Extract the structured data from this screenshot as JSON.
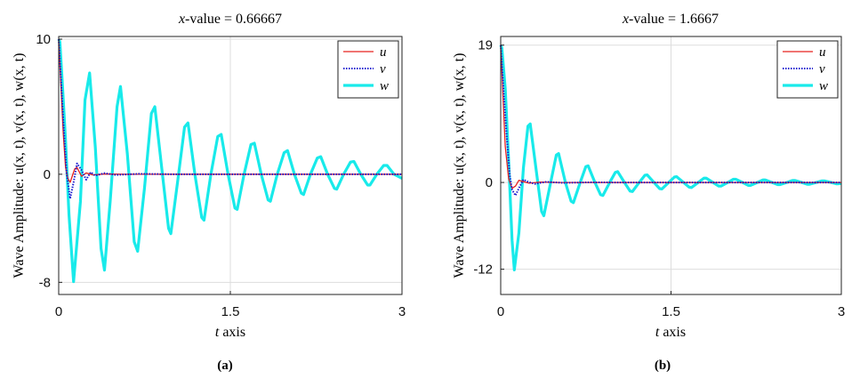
{
  "figure": {
    "panel_labels": [
      "(a)",
      "(b)"
    ]
  },
  "chart_data": [
    {
      "type": "line",
      "title": "x-value = 0.66667",
      "title_var": "x",
      "title_rest": "-value = 0.66667",
      "xlabel": "t axis",
      "xlabel_var": "t",
      "xlabel_rest": " axis",
      "ylabel": "Wave Amplitude:  u(x, t), v(x, t), w(x, t)",
      "xlim": [
        0,
        3
      ],
      "ylim": [
        -8.9,
        10.2
      ],
      "xticks": [
        0,
        1.5,
        3
      ],
      "xtick_labels": [
        "0",
        "1.5",
        "3"
      ],
      "yticks": [
        -8,
        0,
        10
      ],
      "ytick_labels": [
        "-8",
        "0",
        "10"
      ],
      "grid": true,
      "legend_position": "top-right",
      "colors": {
        "u": "#e8211e",
        "v": "#1a1acf",
        "w": "#18eaea"
      },
      "series": [
        {
          "name": "u",
          "style": "solid",
          "points": [
            [
              0,
              10
            ],
            [
              0.02,
              6.5
            ],
            [
              0.04,
              3
            ],
            [
              0.06,
              0.5
            ],
            [
              0.08,
              -0.3
            ],
            [
              0.1,
              -0.6
            ],
            [
              0.12,
              -0.1
            ],
            [
              0.14,
              0.4
            ],
            [
              0.16,
              0.5
            ],
            [
              0.2,
              -0.15
            ],
            [
              0.24,
              0.1
            ],
            [
              0.3,
              -0.05
            ],
            [
              0.4,
              0.02
            ],
            [
              0.6,
              0
            ],
            [
              1.0,
              0
            ],
            [
              3,
              0
            ]
          ]
        },
        {
          "name": "v",
          "style": "dotted",
          "points": [
            [
              0,
              10
            ],
            [
              0.02,
              7
            ],
            [
              0.04,
              4
            ],
            [
              0.07,
              0
            ],
            [
              0.1,
              -1.8
            ],
            [
              0.13,
              -0.6
            ],
            [
              0.16,
              0.8
            ],
            [
              0.2,
              0.3
            ],
            [
              0.24,
              -0.4
            ],
            [
              0.28,
              0.15
            ],
            [
              0.32,
              -0.1
            ],
            [
              0.4,
              0.08
            ],
            [
              0.5,
              -0.05
            ],
            [
              0.7,
              0.03
            ],
            [
              1.0,
              0
            ],
            [
              3,
              0
            ]
          ]
        },
        {
          "name": "w",
          "style": "solid-thick",
          "points": [
            [
              0,
              10
            ],
            [
              0.01,
              9.8
            ],
            [
              0.03,
              7
            ],
            [
              0.06,
              2.5
            ],
            [
              0.09,
              -3
            ],
            [
              0.13,
              -7.95
            ],
            [
              0.19,
              -2
            ],
            [
              0.23,
              5.5
            ],
            [
              0.27,
              7.5
            ],
            [
              0.32,
              2
            ],
            [
              0.37,
              -5.5
            ],
            [
              0.4,
              -7.1
            ],
            [
              0.45,
              -2
            ],
            [
              0.51,
              5
            ],
            [
              0.54,
              6.5
            ],
            [
              0.6,
              1.5
            ],
            [
              0.66,
              -5
            ],
            [
              0.69,
              -5.7
            ],
            [
              0.75,
              -1
            ],
            [
              0.81,
              4.5
            ],
            [
              0.84,
              5
            ],
            [
              0.9,
              0.5
            ],
            [
              0.96,
              -4
            ],
            [
              0.98,
              -4.4
            ],
            [
              1.04,
              -0.5
            ],
            [
              1.1,
              3.5
            ],
            [
              1.13,
              3.8
            ],
            [
              1.19,
              0
            ],
            [
              1.25,
              -3.2
            ],
            [
              1.27,
              -3.4
            ],
            [
              1.33,
              0
            ],
            [
              1.39,
              2.8
            ],
            [
              1.42,
              2.95
            ],
            [
              1.48,
              0
            ],
            [
              1.54,
              -2.5
            ],
            [
              1.56,
              -2.6
            ],
            [
              1.62,
              0
            ],
            [
              1.68,
              2.2
            ],
            [
              1.71,
              2.3
            ],
            [
              1.77,
              0
            ],
            [
              1.83,
              -1.9
            ],
            [
              1.85,
              -2
            ],
            [
              1.91,
              0
            ],
            [
              1.97,
              1.6
            ],
            [
              2.0,
              1.75
            ],
            [
              2.06,
              0
            ],
            [
              2.12,
              -1.4
            ],
            [
              2.14,
              -1.5
            ],
            [
              2.2,
              0
            ],
            [
              2.26,
              1.2
            ],
            [
              2.29,
              1.3
            ],
            [
              2.35,
              0
            ],
            [
              2.41,
              -1.05
            ],
            [
              2.43,
              -1.1
            ],
            [
              2.49,
              0
            ],
            [
              2.55,
              0.9
            ],
            [
              2.58,
              0.95
            ],
            [
              2.64,
              0
            ],
            [
              2.7,
              -0.8
            ],
            [
              2.72,
              -0.8
            ],
            [
              2.78,
              0
            ],
            [
              2.84,
              0.65
            ],
            [
              2.87,
              0.65
            ],
            [
              2.93,
              0
            ],
            [
              3,
              -0.3
            ]
          ]
        }
      ]
    },
    {
      "type": "line",
      "title": "x-value = 1.6667",
      "title_var": "x",
      "title_rest": "-value = 1.6667",
      "xlabel": "t axis",
      "xlabel_var": "t",
      "xlabel_rest": " axis",
      "ylabel": "Wave Amplitude:  u(x, t), v(x, t), w(x, t)",
      "xlim": [
        0,
        3
      ],
      "ylim": [
        -15.5,
        20.2
      ],
      "xticks": [
        0,
        1.5,
        3
      ],
      "xtick_labels": [
        "0",
        "1.5",
        "3"
      ],
      "yticks": [
        -12,
        0,
        19
      ],
      "ytick_labels": [
        "-12",
        "0",
        "19"
      ],
      "grid": true,
      "legend_position": "top-right",
      "colors": {
        "u": "#e8211e",
        "v": "#1a1acf",
        "w": "#18eaea"
      },
      "series": [
        {
          "name": "u",
          "style": "solid",
          "points": [
            [
              0,
              19
            ],
            [
              0.02,
              12
            ],
            [
              0.04,
              5
            ],
            [
              0.07,
              0.5
            ],
            [
              0.1,
              -0.8
            ],
            [
              0.13,
              -0.5
            ],
            [
              0.16,
              0.3
            ],
            [
              0.2,
              0.1
            ],
            [
              0.25,
              -0.1
            ],
            [
              0.35,
              0.05
            ],
            [
              0.5,
              0
            ],
            [
              1.0,
              0
            ],
            [
              3,
              0
            ]
          ]
        },
        {
          "name": "v",
          "style": "dotted",
          "points": [
            [
              0,
              19
            ],
            [
              0.02,
              14
            ],
            [
              0.05,
              7
            ],
            [
              0.08,
              1
            ],
            [
              0.1,
              -1
            ],
            [
              0.13,
              -1.8
            ],
            [
              0.16,
              -0.8
            ],
            [
              0.2,
              0.4
            ],
            [
              0.24,
              0.1
            ],
            [
              0.3,
              -0.2
            ],
            [
              0.4,
              0.08
            ],
            [
              0.55,
              -0.05
            ],
            [
              0.8,
              0.02
            ],
            [
              1.0,
              0
            ],
            [
              3,
              0
            ]
          ]
        },
        {
          "name": "w",
          "style": "solid-thick",
          "points": [
            [
              0,
              19
            ],
            [
              0.01,
              18.6
            ],
            [
              0.04,
              13
            ],
            [
              0.07,
              3
            ],
            [
              0.1,
              -8
            ],
            [
              0.12,
              -12.1
            ],
            [
              0.16,
              -7
            ],
            [
              0.2,
              2
            ],
            [
              0.24,
              7.8
            ],
            [
              0.26,
              8.1
            ],
            [
              0.31,
              2
            ],
            [
              0.36,
              -4
            ],
            [
              0.38,
              -4.6
            ],
            [
              0.44,
              0
            ],
            [
              0.49,
              3.8
            ],
            [
              0.51,
              4
            ],
            [
              0.57,
              0
            ],
            [
              0.62,
              -2.6
            ],
            [
              0.64,
              -2.8
            ],
            [
              0.7,
              0
            ],
            [
              0.75,
              2.2
            ],
            [
              0.77,
              2.3
            ],
            [
              0.83,
              0
            ],
            [
              0.88,
              -1.7
            ],
            [
              0.9,
              -1.8
            ],
            [
              0.96,
              0
            ],
            [
              1.01,
              1.4
            ],
            [
              1.03,
              1.5
            ],
            [
              1.09,
              0
            ],
            [
              1.14,
              -1.2
            ],
            [
              1.16,
              -1.25
            ],
            [
              1.22,
              0
            ],
            [
              1.27,
              1.0
            ],
            [
              1.29,
              1.05
            ],
            [
              1.35,
              0
            ],
            [
              1.4,
              -0.85
            ],
            [
              1.42,
              -0.9
            ],
            [
              1.48,
              0
            ],
            [
              1.53,
              0.75
            ],
            [
              1.55,
              0.8
            ],
            [
              1.61,
              0
            ],
            [
              1.66,
              -0.65
            ],
            [
              1.68,
              -0.7
            ],
            [
              1.74,
              0
            ],
            [
              1.79,
              0.6
            ],
            [
              1.81,
              0.6
            ],
            [
              1.87,
              0
            ],
            [
              1.92,
              -0.5
            ],
            [
              1.94,
              -0.5
            ],
            [
              2.0,
              0
            ],
            [
              2.05,
              0.45
            ],
            [
              2.07,
              0.45
            ],
            [
              2.13,
              0
            ],
            [
              2.18,
              -0.4
            ],
            [
              2.2,
              -0.4
            ],
            [
              2.26,
              0
            ],
            [
              2.31,
              0.35
            ],
            [
              2.33,
              0.35
            ],
            [
              2.39,
              0
            ],
            [
              2.44,
              -0.3
            ],
            [
              2.46,
              -0.3
            ],
            [
              2.52,
              0
            ],
            [
              2.57,
              0.28
            ],
            [
              2.59,
              0.28
            ],
            [
              2.65,
              0
            ],
            [
              2.7,
              -0.25
            ],
            [
              2.72,
              -0.25
            ],
            [
              2.78,
              0
            ],
            [
              2.83,
              0.22
            ],
            [
              2.85,
              0.22
            ],
            [
              2.91,
              0
            ],
            [
              2.96,
              -0.2
            ],
            [
              3,
              -0.15
            ]
          ]
        }
      ]
    }
  ]
}
